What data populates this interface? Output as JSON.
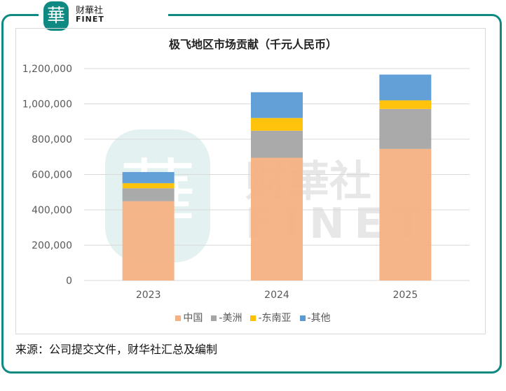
{
  "brand": {
    "logo_char": "華",
    "name_cn": "财華社",
    "name_en": "FINET"
  },
  "chart_data": {
    "type": "bar",
    "stacked": true,
    "title": "极飞地区市场贡献（千元人民币）",
    "categories": [
      "2023",
      "2024",
      "2025"
    ],
    "series": [
      {
        "name": "中国",
        "color": "#f4b183",
        "values": [
          449000,
          695000,
          745000
        ]
      },
      {
        "name": "-美洲",
        "color": "#a5a5a5",
        "values": [
          73000,
          153000,
          226000
        ]
      },
      {
        "name": "-东南亚",
        "color": "#ffc000",
        "values": [
          29000,
          72000,
          49000
        ]
      },
      {
        "name": "-其他",
        "color": "#5b9bd5",
        "values": [
          63000,
          146000,
          146000
        ]
      }
    ],
    "yticks": [
      "0",
      "200,000",
      "400,000",
      "600,000",
      "800,000",
      "1,000,000",
      "1,200,000"
    ],
    "ylim": [
      0,
      1200000
    ],
    "grid": true,
    "legend": "bottom"
  },
  "source": "来源：公司提交文件，财华社汇总及编制"
}
